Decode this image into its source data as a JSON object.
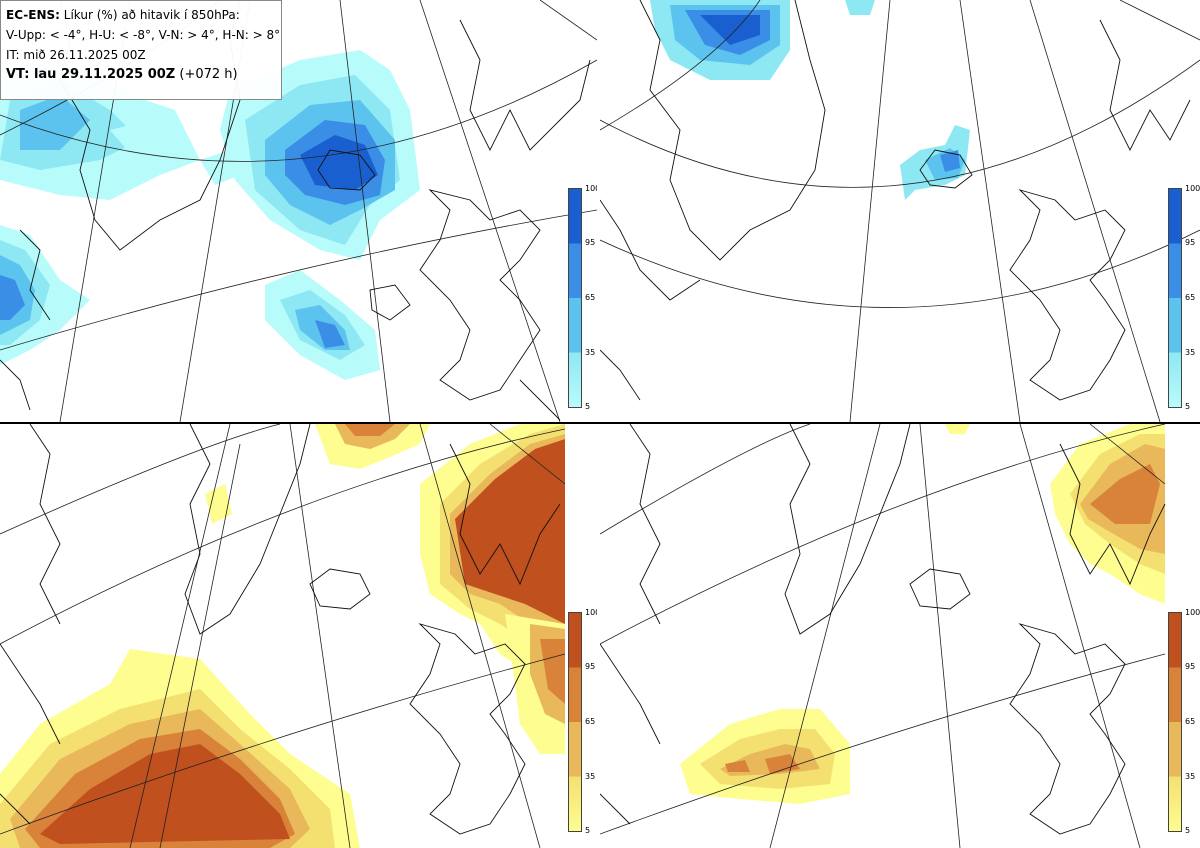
{
  "header": {
    "model": "EC-ENS:",
    "description": "Líkur (%) að hitavik í 850hPa:",
    "legend_line": "V-Upp: < -4°, H-U: < -8°, V-N: > 4°, H-N: > 8°",
    "it_line": "IT: mið 26.11.2025 00Z",
    "vt_bold": "VT: lau 29.11.2025 00Z",
    "vt_suffix": "(+072 h)"
  },
  "colorbar_cold": {
    "ticks": [
      "100",
      "95",
      "65",
      "35",
      "5"
    ],
    "colors": [
      "#1a5fcf",
      "#3a8ee6",
      "#5cc3ef",
      "#8ee8f4",
      "#b8fbfb"
    ]
  },
  "colorbar_warm": {
    "ticks": [
      "100",
      "95",
      "65",
      "35",
      "5"
    ],
    "colors": [
      "#c0501e",
      "#d9823a",
      "#e8b85a",
      "#f4e070",
      "#fdfd90"
    ]
  },
  "panels": [
    {
      "name": "V-Upp",
      "quadrant": "top-left"
    },
    {
      "name": "H-U",
      "quadrant": "top-right"
    },
    {
      "name": "V-N",
      "quadrant": "bottom-left"
    },
    {
      "name": "H-N",
      "quadrant": "bottom-right"
    }
  ]
}
